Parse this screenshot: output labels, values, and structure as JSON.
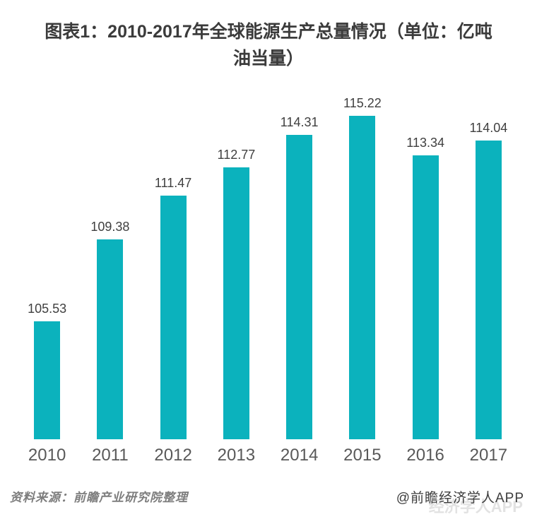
{
  "title": {
    "line1": "图表1：2010-2017年全球能源生产总量情况（单位：亿吨",
    "line2": "油当量）"
  },
  "chart_data": {
    "type": "bar",
    "title": "图表1：2010-2017年全球能源生产总量情况（单位：亿吨油当量）",
    "categories": [
      "2010",
      "2011",
      "2012",
      "2013",
      "2014",
      "2015",
      "2016",
      "2017"
    ],
    "values": [
      105.53,
      109.38,
      111.47,
      112.77,
      114.31,
      115.22,
      113.34,
      114.04
    ],
    "xlabel": "",
    "ylabel": "",
    "unit": "亿吨油当量",
    "ylim": [
      100,
      117
    ],
    "grid": false,
    "legend": null,
    "data_labels_visible": true,
    "bar_color": "#0bb2bd",
    "value_label_color": "#3f3f3f",
    "axis_label_color": "#595959"
  },
  "footer": {
    "source": "资料来源：前瞻产业研究院整理",
    "credit": "@前瞻经济学人APP",
    "watermark": "经济学人APP"
  },
  "colors": {
    "background": "#ffffff",
    "title": "#3b3b3b",
    "accent": "#0bb2bd"
  }
}
